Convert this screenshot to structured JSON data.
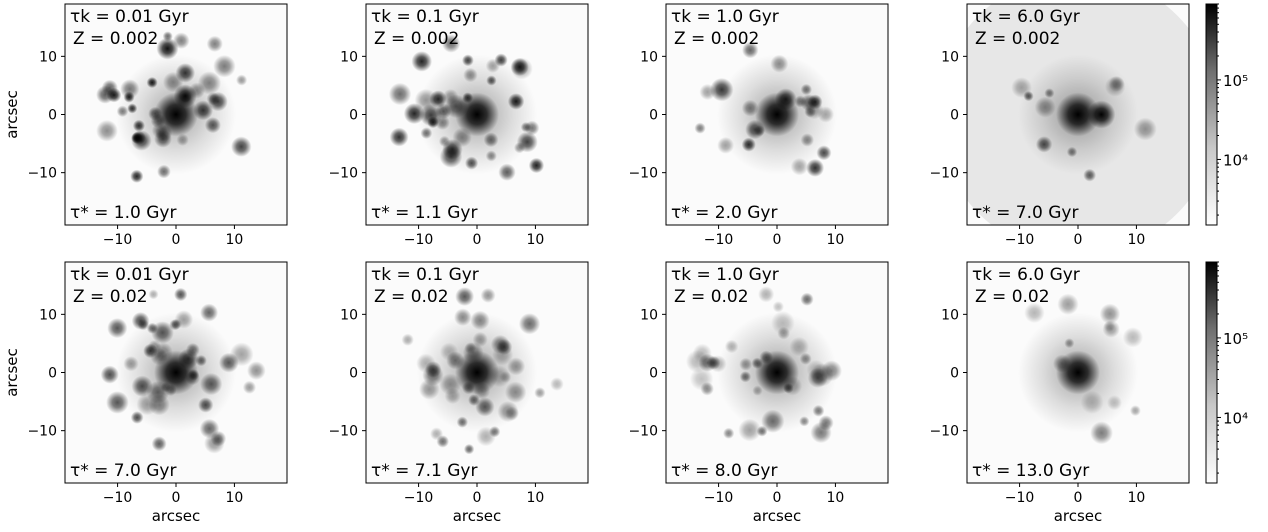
{
  "figure": {
    "type": "image-grid",
    "rows": 2,
    "cols": 4,
    "colormap": "Greys",
    "colors": {
      "frame": "#000000",
      "background": "#ffffff"
    }
  },
  "chart_data": [
    {
      "type": "heatmap",
      "row": 0,
      "col": 0,
      "tau_k": "τk = 0.01 Gyr",
      "Z": "Z = 0.002",
      "tau_star": "τ* = 1.0 Gyr",
      "xlabel": "",
      "ylabel": "arcsec",
      "xticks": [
        "−10",
        "0",
        "10"
      ],
      "yticks": [
        "10",
        "0",
        "−10"
      ],
      "xlim": [
        -19,
        19
      ],
      "ylim": [
        -19,
        19
      ]
    },
    {
      "type": "heatmap",
      "row": 0,
      "col": 1,
      "tau_k": "τk = 0.1 Gyr",
      "Z": "Z = 0.002",
      "tau_star": "τ* = 1.1 Gyr",
      "xlabel": "",
      "ylabel": "",
      "xticks": [
        "−10",
        "0",
        "10"
      ],
      "yticks": [
        "10",
        "0",
        "−10"
      ],
      "xlim": [
        -19,
        19
      ],
      "ylim": [
        -19,
        19
      ]
    },
    {
      "type": "heatmap",
      "row": 0,
      "col": 2,
      "tau_k": "τk = 1.0 Gyr",
      "Z": "Z = 0.002",
      "tau_star": "τ* = 2.0 Gyr",
      "xlabel": "",
      "ylabel": "",
      "xticks": [
        "−10",
        "0",
        "10"
      ],
      "yticks": [
        "10",
        "0",
        "−10"
      ],
      "xlim": [
        -19,
        19
      ],
      "ylim": [
        -19,
        19
      ]
    },
    {
      "type": "heatmap",
      "row": 0,
      "col": 3,
      "tau_k": "τk = 6.0 Gyr",
      "Z": "Z = 0.002",
      "tau_star": "τ* = 7.0 Gyr",
      "xlabel": "",
      "ylabel": "",
      "xticks": [
        "−10",
        "0",
        "10"
      ],
      "yticks": [
        "10",
        "0",
        "−10"
      ],
      "xlim": [
        -19,
        19
      ],
      "ylim": [
        -19,
        19
      ]
    },
    {
      "type": "heatmap",
      "row": 1,
      "col": 0,
      "tau_k": "τk = 0.01 Gyr",
      "Z": "Z = 0.02",
      "tau_star": "τ* = 7.0 Gyr",
      "xlabel": "arcsec",
      "ylabel": "arcsec",
      "xticks": [
        "−10",
        "0",
        "10"
      ],
      "yticks": [
        "10",
        "0",
        "−10"
      ],
      "xlim": [
        -19,
        19
      ],
      "ylim": [
        -19,
        19
      ]
    },
    {
      "type": "heatmap",
      "row": 1,
      "col": 1,
      "tau_k": "τk = 0.1 Gyr",
      "Z": "Z = 0.02",
      "tau_star": "τ* = 7.1 Gyr",
      "xlabel": "arcsec",
      "ylabel": "",
      "xticks": [
        "−10",
        "0",
        "10"
      ],
      "yticks": [
        "10",
        "0",
        "−10"
      ],
      "xlim": [
        -19,
        19
      ],
      "ylim": [
        -19,
        19
      ]
    },
    {
      "type": "heatmap",
      "row": 1,
      "col": 2,
      "tau_k": "τk = 1.0 Gyr",
      "Z": "Z = 0.02",
      "tau_star": "τ* = 8.0 Gyr",
      "xlabel": "arcsec",
      "ylabel": "",
      "xticks": [
        "−10",
        "0",
        "10"
      ],
      "yticks": [
        "10",
        "0",
        "−10"
      ],
      "xlim": [
        -19,
        19
      ],
      "ylim": [
        -19,
        19
      ]
    },
    {
      "type": "heatmap",
      "row": 1,
      "col": 3,
      "tau_k": "τk = 6.0 Gyr",
      "Z": "Z = 0.02",
      "tau_star": "τ* = 13.0 Gyr",
      "xlabel": "arcsec",
      "ylabel": "",
      "xticks": [
        "−10",
        "0",
        "10"
      ],
      "yticks": [
        "10",
        "0",
        "−10"
      ],
      "xlim": [
        -19,
        19
      ],
      "ylim": [
        -19,
        19
      ]
    }
  ],
  "colorbars": [
    {
      "row": 0,
      "scale": "log",
      "ticks": [
        "10⁵",
        "10⁴"
      ],
      "tick_values": [
        100000,
        10000
      ],
      "range": [
        1500,
        900000
      ]
    },
    {
      "row": 1,
      "scale": "log",
      "ticks": [
        "10⁵",
        "10⁴"
      ],
      "tick_values": [
        100000,
        10000
      ],
      "range": [
        1500,
        900000
      ]
    }
  ]
}
